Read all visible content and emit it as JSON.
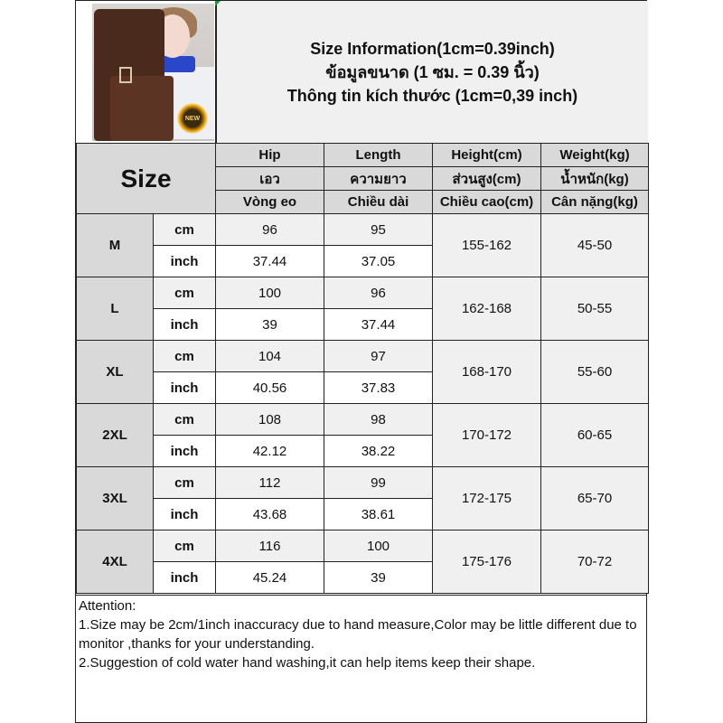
{
  "title_lines": [
    "Size Information(1cm=0.39inch)",
    "ข้อมูลขนาด (1 ซม. = 0.39 นิ้ว)",
    "Thông tin kích thước (1cm=0,39 inch)"
  ],
  "photo_badge_text": "NEW",
  "size_header": "Size",
  "columns": [
    {
      "en": "Hip",
      "th": "เอว",
      "vi": "Vòng eo"
    },
    {
      "en": "Length",
      "th": "ความยาว",
      "vi": "Chiều dài"
    },
    {
      "en": "Height(cm)",
      "th": "ส่วนสูง(cm)",
      "vi": "Chiều cao(cm)"
    },
    {
      "en": "Weight(kg)",
      "th": "น้ำหนัก(kg)",
      "vi": "Cân nặng(kg)"
    }
  ],
  "units": {
    "cm": "cm",
    "inch": "inch"
  },
  "rows": [
    {
      "size": "M",
      "hip_cm": "96",
      "length_cm": "95",
      "hip_inch": "37.44",
      "length_inch": "37.05",
      "height": "155-162",
      "weight": "45-50"
    },
    {
      "size": "L",
      "hip_cm": "100",
      "length_cm": "96",
      "hip_inch": "39",
      "length_inch": "37.44",
      "height": "162-168",
      "weight": "50-55"
    },
    {
      "size": "XL",
      "hip_cm": "104",
      "length_cm": "97",
      "hip_inch": "40.56",
      "length_inch": "37.83",
      "height": "168-170",
      "weight": "55-60"
    },
    {
      "size": "2XL",
      "hip_cm": "108",
      "length_cm": "98",
      "hip_inch": "42.12",
      "length_inch": "38.22",
      "height": "170-172",
      "weight": "60-65"
    },
    {
      "size": "3XL",
      "hip_cm": "112",
      "length_cm": "99",
      "hip_inch": "43.68",
      "length_inch": "38.61",
      "height": "172-175",
      "weight": "65-70"
    },
    {
      "size": "4XL",
      "hip_cm": "116",
      "length_cm": "100",
      "hip_inch": "45.24",
      "length_inch": "39",
      "height": "175-176",
      "weight": "70-72"
    }
  ],
  "attention": {
    "heading": "Attention:",
    "lines": [
      "1.Size may be 2cm/1inch inaccuracy due to hand measure,Color may be little different due to monitor ,thanks for your understanding.",
      "2.Suggestion of cold water hand washing,it can help items keep their shape."
    ]
  }
}
